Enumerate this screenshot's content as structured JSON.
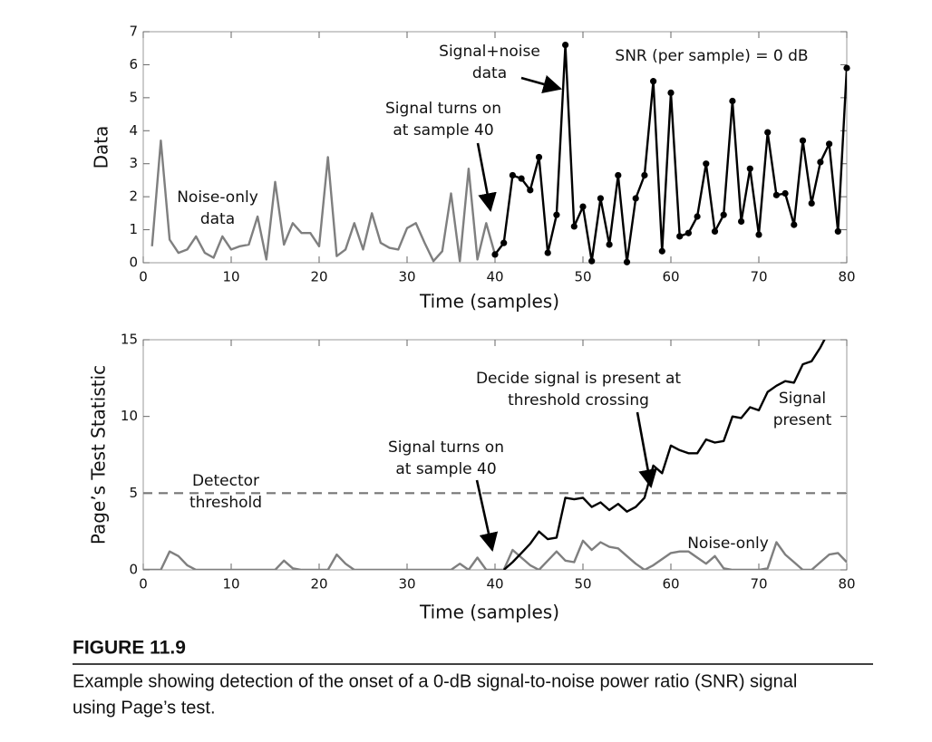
{
  "chart_data": [
    {
      "type": "line",
      "xlabel": "Time (samples)",
      "ylabel": "Data",
      "x": [
        1,
        2,
        3,
        4,
        5,
        6,
        7,
        8,
        9,
        10,
        11,
        12,
        13,
        14,
        15,
        16,
        17,
        18,
        19,
        20,
        21,
        22,
        23,
        24,
        25,
        26,
        27,
        28,
        29,
        30,
        31,
        32,
        33,
        34,
        35,
        36,
        37,
        38,
        39,
        40,
        41,
        42,
        43,
        44,
        45,
        46,
        47,
        48,
        49,
        50,
        51,
        52,
        53,
        54,
        55,
        56,
        57,
        58,
        59,
        60,
        61,
        62,
        63,
        64,
        65,
        66,
        67,
        68,
        69,
        70,
        71,
        72,
        73,
        74,
        75,
        76,
        77,
        78,
        79,
        80
      ],
      "series": [
        {
          "color": "#7f7f7f",
          "markers": false,
          "values": [
            0.5,
            3.7,
            0.7,
            0.3,
            0.4,
            0.8,
            0.3,
            0.15,
            0.8,
            0.4,
            0.5,
            0.55,
            1.4,
            0.1,
            2.45,
            0.55,
            1.2,
            0.9,
            0.9,
            0.5,
            3.2,
            0.2,
            0.4,
            1.2,
            0.4,
            1.5,
            0.6,
            0.45,
            0.4,
            1.05,
            1.2,
            0.6,
            0.05,
            0.35,
            2.1,
            0.05,
            2.85,
            0.1,
            1.2,
            0.25,
            null,
            null,
            null,
            null,
            null,
            null,
            null,
            null,
            null,
            null,
            null,
            null,
            null,
            null,
            null,
            null,
            null,
            null,
            null,
            null,
            null,
            null,
            null,
            null,
            null,
            null,
            null,
            null,
            null,
            null,
            null,
            null,
            null,
            null,
            null,
            null,
            null,
            null,
            null,
            null
          ]
        },
        {
          "color": "#000000",
          "markers": true,
          "values": [
            null,
            null,
            null,
            null,
            null,
            null,
            null,
            null,
            null,
            null,
            null,
            null,
            null,
            null,
            null,
            null,
            null,
            null,
            null,
            null,
            null,
            null,
            null,
            null,
            null,
            null,
            null,
            null,
            null,
            null,
            null,
            null,
            null,
            null,
            null,
            null,
            null,
            null,
            null,
            0.25,
            0.6,
            2.65,
            2.55,
            2.2,
            3.2,
            0.3,
            1.45,
            6.6,
            1.1,
            1.7,
            0.05,
            1.95,
            0.55,
            2.65,
            0.02,
            1.95,
            2.65,
            5.5,
            0.35,
            5.15,
            0.8,
            0.9,
            1.4,
            3.0,
            0.95,
            1.45,
            4.9,
            1.25,
            2.85,
            0.85,
            3.95,
            2.05,
            2.1,
            1.15,
            3.7,
            1.8,
            3.05,
            3.6,
            0.95,
            5.9
          ]
        }
      ],
      "xlim": [
        0,
        80
      ],
      "xticks": [
        0,
        10,
        20,
        30,
        40,
        50,
        60,
        70,
        80
      ],
      "ylim": [
        0,
        7
      ],
      "yticks": [
        0,
        1,
        2,
        3,
        4,
        5,
        6,
        7
      ],
      "annotations": [
        {
          "text": [
            "Signal+noise",
            "data"
          ]
        },
        {
          "text": [
            "SNR (per sample) = 0 dB"
          ]
        },
        {
          "text": [
            "Signal turns on",
            "at sample 40"
          ]
        },
        {
          "text": [
            "Noise-only",
            "data"
          ]
        }
      ]
    },
    {
      "type": "line",
      "xlabel": "Time (samples)",
      "ylabel": "Page’s Test Statistic",
      "x": [
        0,
        1,
        2,
        3,
        4,
        5,
        6,
        7,
        8,
        9,
        10,
        11,
        12,
        13,
        14,
        15,
        16,
        17,
        18,
        19,
        20,
        21,
        22,
        23,
        24,
        25,
        26,
        27,
        28,
        29,
        30,
        31,
        32,
        33,
        34,
        35,
        36,
        37,
        38,
        39,
        40,
        41,
        42,
        43,
        44,
        45,
        46,
        47,
        48,
        49,
        50,
        51,
        52,
        53,
        54,
        55,
        56,
        57,
        58,
        59,
        60,
        61,
        62,
        63,
        64,
        65,
        66,
        67,
        68,
        69,
        70,
        71,
        72,
        73,
        74,
        75,
        76,
        77,
        78,
        79,
        80
      ],
      "series": [
        {
          "color": "#7f7f7f",
          "markers": false,
          "values": [
            0,
            0,
            0,
            1.2,
            0.9,
            0.3,
            0,
            0,
            0,
            0,
            0,
            0,
            0,
            0,
            0,
            0,
            0.6,
            0.1,
            0,
            0,
            0,
            0,
            1.0,
            0.4,
            0,
            0,
            0,
            0,
            0,
            0,
            0,
            0,
            0,
            0,
            0,
            0,
            0.4,
            0,
            0.8,
            0,
            0,
            0,
            1.3,
            0.8,
            0.3,
            0,
            0.6,
            1.2,
            0.6,
            0.5,
            1.9,
            1.3,
            1.8,
            1.5,
            1.4,
            0.9,
            0.4,
            0,
            0.3,
            0.7,
            1.1,
            1.2,
            1.2,
            0.8,
            0.4,
            0.9,
            0.1,
            0,
            0,
            0,
            0,
            0.1,
            1.8,
            1.0,
            0.5,
            0,
            0,
            0.5,
            1.0,
            1.1,
            0.5
          ]
        },
        {
          "color": "#000000",
          "markers": false,
          "values": [
            null,
            null,
            null,
            null,
            null,
            null,
            null,
            null,
            null,
            null,
            null,
            null,
            null,
            null,
            null,
            null,
            null,
            null,
            null,
            null,
            null,
            null,
            null,
            null,
            null,
            null,
            null,
            null,
            null,
            null,
            null,
            null,
            null,
            null,
            null,
            null,
            null,
            null,
            null,
            null,
            null,
            0,
            0.5,
            1.1,
            1.7,
            2.5,
            2.0,
            2.1,
            4.7,
            4.6,
            4.7,
            4.1,
            4.4,
            3.9,
            4.3,
            3.8,
            4.1,
            4.7,
            6.8,
            6.3,
            8.1,
            7.8,
            7.6,
            7.6,
            8.5,
            8.3,
            8.4,
            10.0,
            9.9,
            10.6,
            10.4,
            11.6,
            12.0,
            12.3,
            12.2,
            13.4,
            13.6,
            14.5,
            15.6,
            null,
            null
          ]
        }
      ],
      "threshold": 5,
      "xlim": [
        0,
        80
      ],
      "xticks": [
        0,
        10,
        20,
        30,
        40,
        50,
        60,
        70,
        80
      ],
      "ylim": [
        0,
        15
      ],
      "yticks": [
        0,
        5,
        10,
        15
      ],
      "annotations": [
        {
          "text": [
            "Decide signal is present at",
            "threshold crossing"
          ]
        },
        {
          "text": [
            "Signal",
            "present"
          ]
        },
        {
          "text": [
            "Signal turns on",
            "at sample 40"
          ]
        },
        {
          "text": [
            "Detector",
            "threshold"
          ]
        },
        {
          "text": [
            "Noise-only"
          ]
        }
      ]
    }
  ],
  "figure": {
    "label": "FIGURE 11.9",
    "caption": [
      "Example showing detection of the onset of a 0-dB signal-to-noise power ratio (SNR) signal",
      "using Page’s test."
    ]
  }
}
